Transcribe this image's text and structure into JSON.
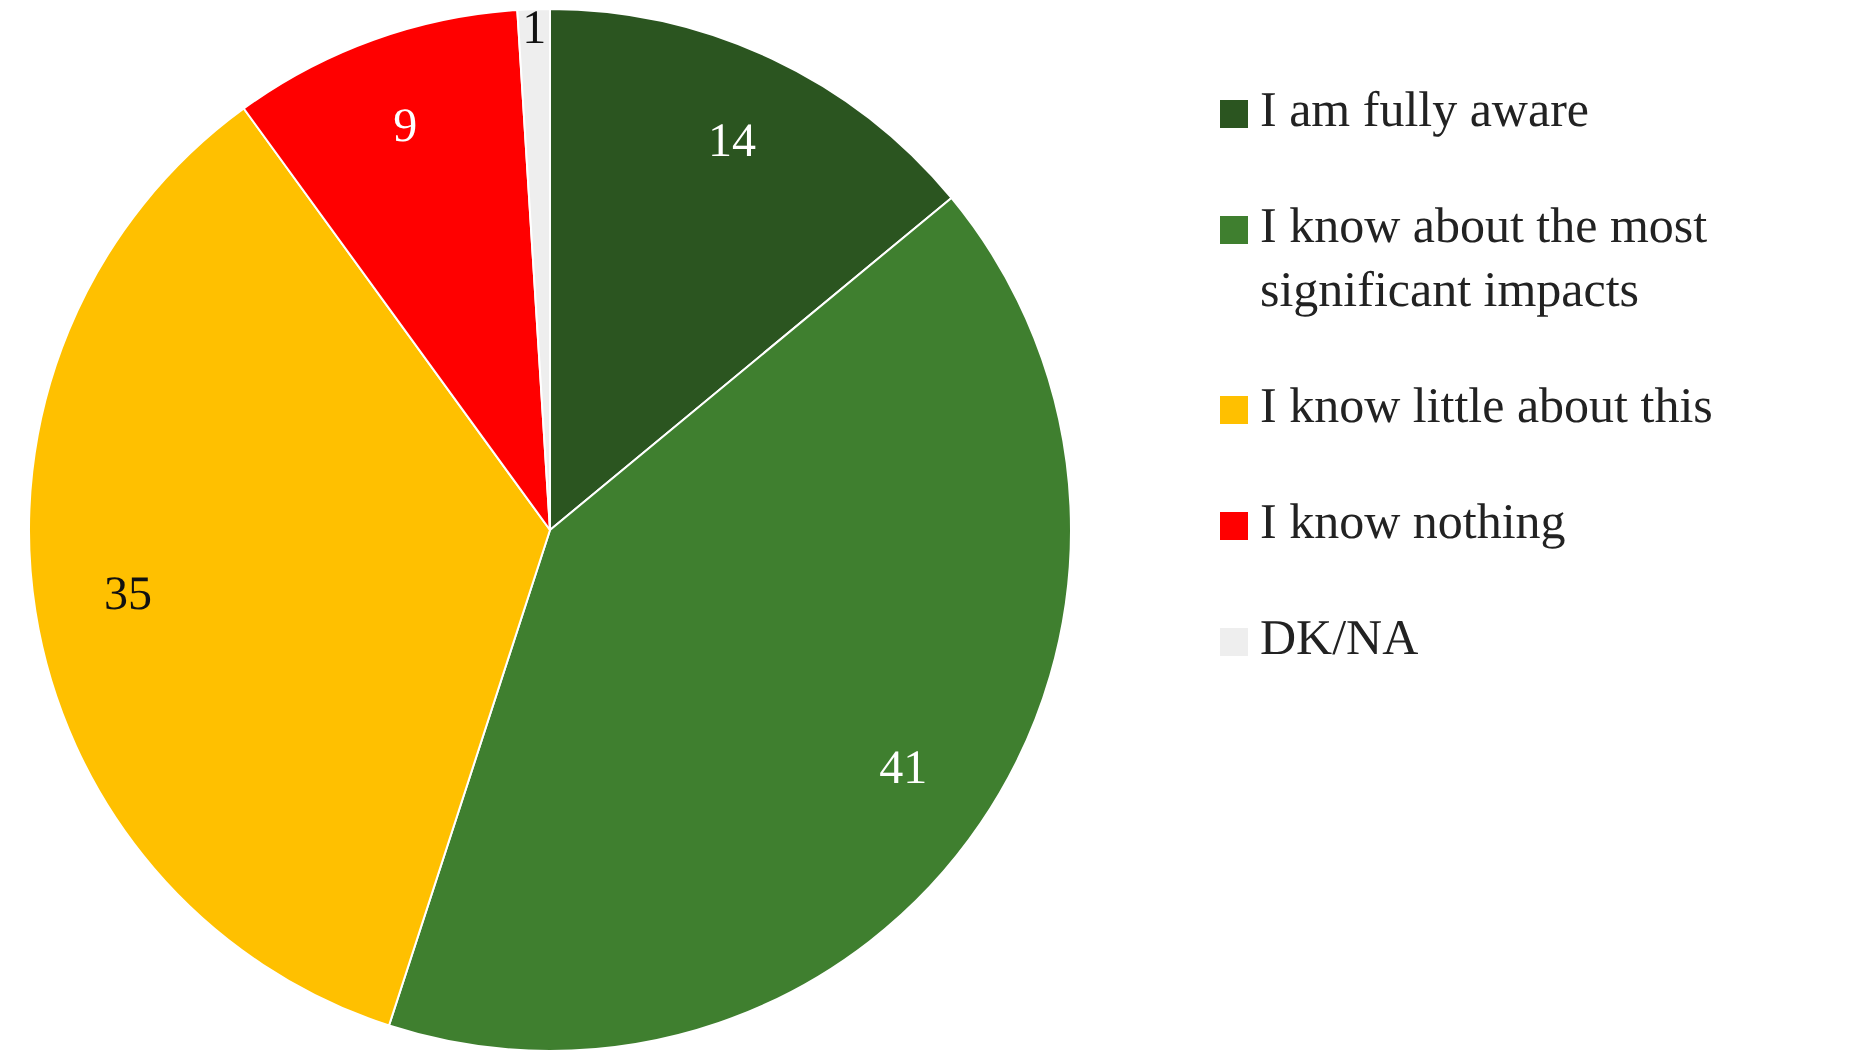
{
  "chart_data": {
    "type": "pie",
    "categories": [
      "I am fully aware",
      "I know about the most significant impacts",
      "I know little about this",
      "I know nothing",
      "DK/NA"
    ],
    "values": [
      14,
      41,
      35,
      9,
      1
    ],
    "colors": [
      "#2b5520",
      "#3f7f2f",
      "#ffc000",
      "#ff0000",
      "#eeeeee"
    ],
    "data_labels": true,
    "legend": "right"
  }
}
